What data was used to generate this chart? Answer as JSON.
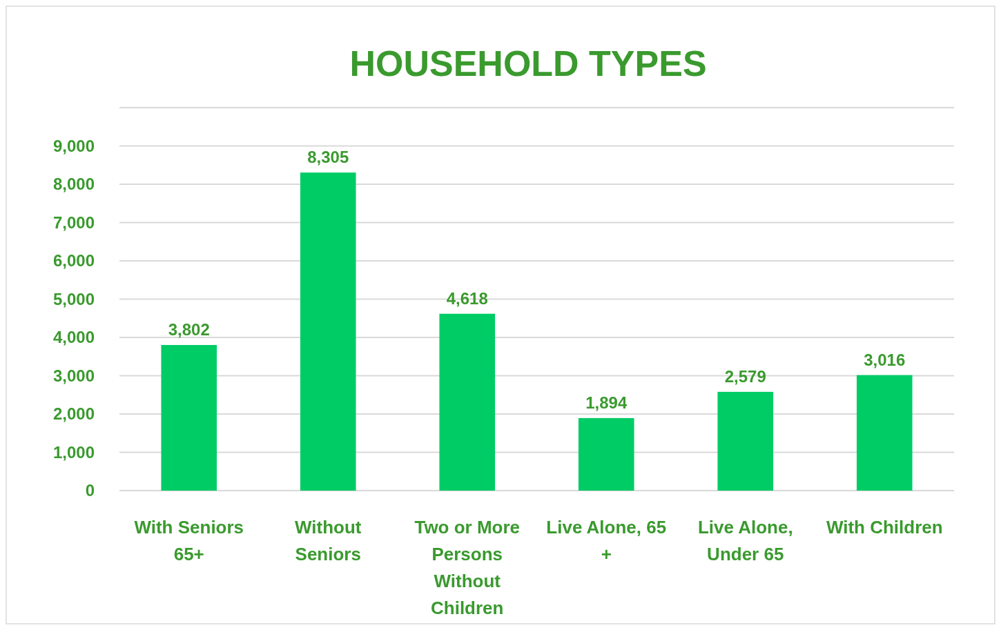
{
  "chart_data": {
    "type": "bar",
    "title": "HOUSEHOLD TYPES",
    "categories": [
      "With Seniors 65+",
      "Without Seniors",
      "Two or More Persons Without Children",
      "Live Alone, 65 +",
      "Live Alone, Under 65",
      "With Children"
    ],
    "values": [
      3802,
      8305,
      4618,
      1894,
      2579,
      3016
    ],
    "color": "#00cc66",
    "ylim": [
      0,
      10000
    ],
    "value_labels": [
      "3,802",
      "8,305",
      "4,618",
      "1,894",
      "2,579",
      "3,016"
    ],
    "yticks": [
      0,
      {
        "value": 1000,
        "label": "1,000"
      },
      {
        "value": 2000,
        "label": "2,000"
      },
      {
        "value": 3000,
        "label": "3,000"
      },
      {
        "value": 4000,
        "label": "4,000"
      },
      {
        "value": 5000,
        "label": "5,000"
      },
      {
        "value": 6000,
        "label": "6,000"
      },
      {
        "value": 7000,
        "label": "7,000"
      },
      {
        "value": 8000,
        "label": "8,000"
      },
      {
        "value": 9000,
        "label": "9,000"
      },
      {
        "value": 10000,
        "label": null
      }
    ],
    "grid": "y"
  }
}
